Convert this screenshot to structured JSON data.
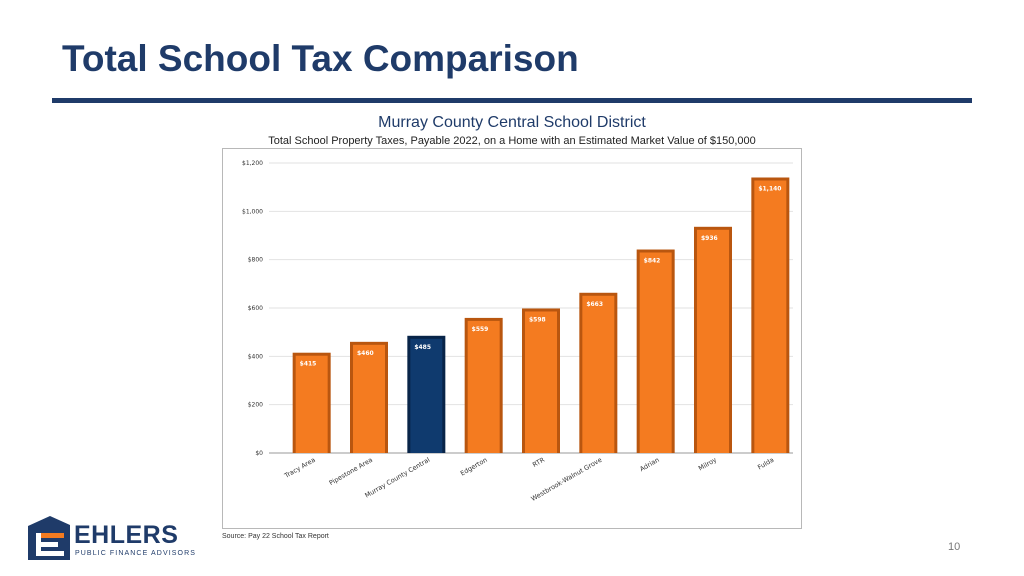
{
  "slide": {
    "title": "Total School Tax Comparison",
    "page_number": "10",
    "source": "Source: Pay 22 School Tax Report"
  },
  "logo": {
    "name": "EHLERS",
    "tagline": "PUBLIC FINANCE ADVISORS"
  },
  "colors": {
    "navy": "#1f3b69",
    "bar_orange": "#f47b20",
    "bar_highlight": "#0f3a6e"
  },
  "chart_data": {
    "type": "bar",
    "title": "Murray County Central School District",
    "subtitle": "Total School Property Taxes, Payable 2022, on a Home with an Estimated Market Value of $150,000",
    "categories": [
      "Tracy Area",
      "Pipestone Area",
      "Murray County Central",
      "Edgerton",
      "RTR",
      "Westbrook-Walnut Grove",
      "Adrian",
      "Milroy",
      "Fulda"
    ],
    "values": [
      415,
      460,
      485,
      559,
      598,
      663,
      842,
      936,
      1140
    ],
    "value_labels": [
      "$415",
      "$460",
      "$485",
      "$559",
      "$598",
      "$663",
      "$842",
      "$936",
      "$1,140"
    ],
    "highlight": "Murray County Central",
    "y_ticks": [
      0,
      200,
      400,
      600,
      800,
      1000,
      1200
    ],
    "y_tick_labels": [
      "$0",
      "$200",
      "$400",
      "$600",
      "$800",
      "$1,000",
      "$1,200"
    ],
    "ylim": [
      0,
      1200
    ],
    "grid": true,
    "legend": "none"
  }
}
